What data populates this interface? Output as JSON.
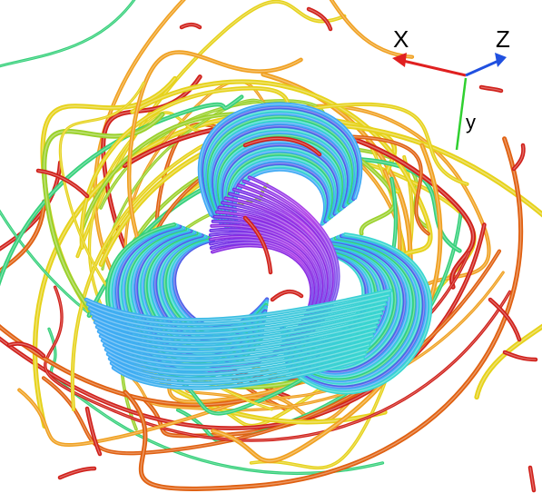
{
  "scene": {
    "description_kind": "streamline-tube-rendering",
    "background": "#ffffff",
    "palette": [
      "#8a2be2",
      "#4f5fe8",
      "#3fa9f5",
      "#38d6d0",
      "#35d07a",
      "#9ad12b",
      "#e6d21a",
      "#f0a020",
      "#e06010",
      "#d0201a"
    ]
  },
  "axes": {
    "x_label": "X",
    "y_label": "y",
    "z_label": "Z",
    "x_color": "#e02020",
    "y_color": "#30d030",
    "z_color": "#2050e0"
  }
}
